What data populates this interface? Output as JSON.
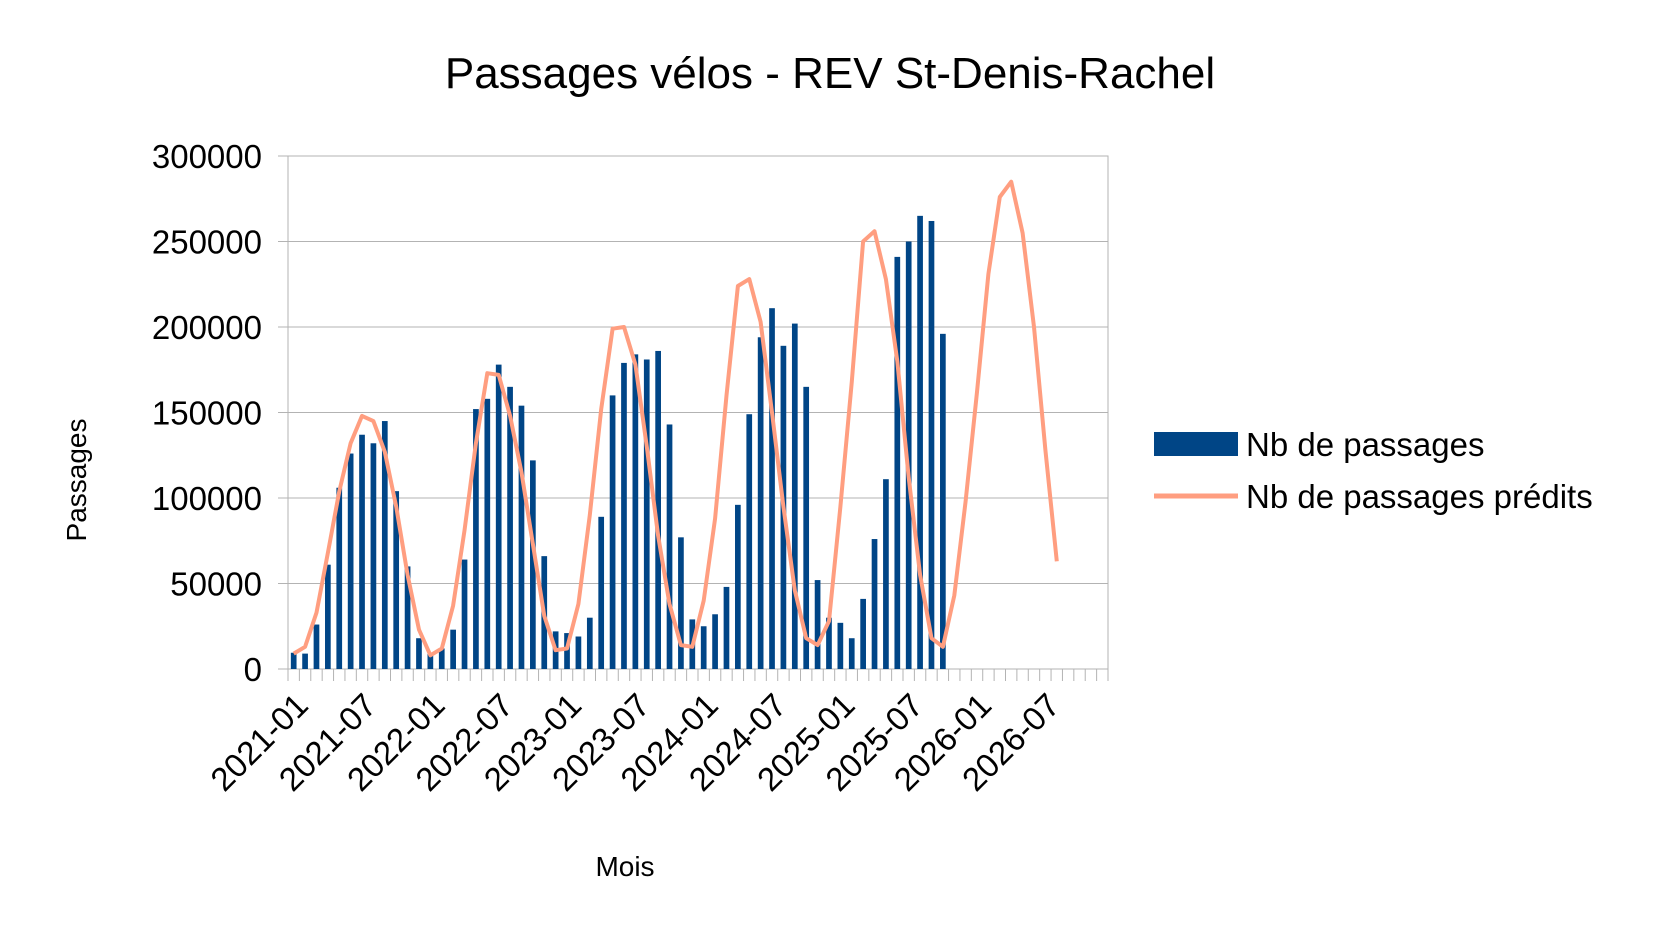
{
  "chart_data": {
    "type": "bar",
    "title": "Passages vélos - REV St-Denis-Rachel",
    "xlabel": "Mois",
    "ylabel": "Passages",
    "ylim": [
      0,
      300000
    ],
    "yticks": [
      0,
      50000,
      100000,
      150000,
      200000,
      250000,
      300000
    ],
    "ytick_labels": [
      "0",
      "50000",
      "100000",
      "150000",
      "200000",
      "250000",
      "300000"
    ],
    "x_start": "2021-01",
    "x_months_total": 72,
    "xtick_labels": [
      "2021-01",
      "2021-07",
      "2022-01",
      "2022-07",
      "2023-01",
      "2023-07",
      "2024-01",
      "2024-07",
      "2025-01",
      "2025-07",
      "2026-01",
      "2026-07"
    ],
    "grid": true,
    "legend_position": "right",
    "colors": {
      "bars": "#004586",
      "line": "#ff9e80",
      "grid": "#b3b3b3"
    },
    "series": [
      {
        "name": "Nb de passages",
        "type": "bar",
        "values": [
          9500,
          9000,
          26000,
          61000,
          106000,
          126000,
          137000,
          132000,
          145000,
          104000,
          60000,
          18000,
          9500,
          12000,
          23000,
          64000,
          152000,
          158000,
          178000,
          165000,
          154000,
          122000,
          66000,
          22000,
          21000,
          19000,
          30000,
          89000,
          160000,
          179000,
          184000,
          181000,
          186000,
          143000,
          77000,
          29000,
          25000,
          32000,
          48000,
          96000,
          149000,
          194000,
          211000,
          189000,
          202000,
          165000,
          52000,
          30000,
          27000,
          18000,
          41000,
          76000,
          111000,
          241000,
          250000,
          265000,
          262000,
          196000
        ]
      },
      {
        "name": "Nb de passages prédits",
        "type": "line",
        "values": [
          9000,
          13000,
          33000,
          68000,
          104000,
          132000,
          148000,
          145000,
          127000,
          95000,
          55000,
          23000,
          8000,
          12000,
          37000,
          81000,
          132000,
          173000,
          172000,
          148000,
          115000,
          73000,
          31000,
          11000,
          12000,
          38000,
          90000,
          152000,
          199000,
          200000,
          178000,
          130000,
          78000,
          38000,
          14000,
          13000,
          40000,
          88000,
          160000,
          224000,
          228000,
          203000,
          150000,
          95000,
          46000,
          18000,
          14000,
          28000,
          95000,
          168000,
          250000,
          256000,
          228000,
          180000,
          112000,
          55000,
          18000,
          13000,
          43000,
          98000,
          162000,
          231000,
          276000,
          285000,
          255000,
          200000,
          128000,
          63000
        ]
      }
    ]
  }
}
